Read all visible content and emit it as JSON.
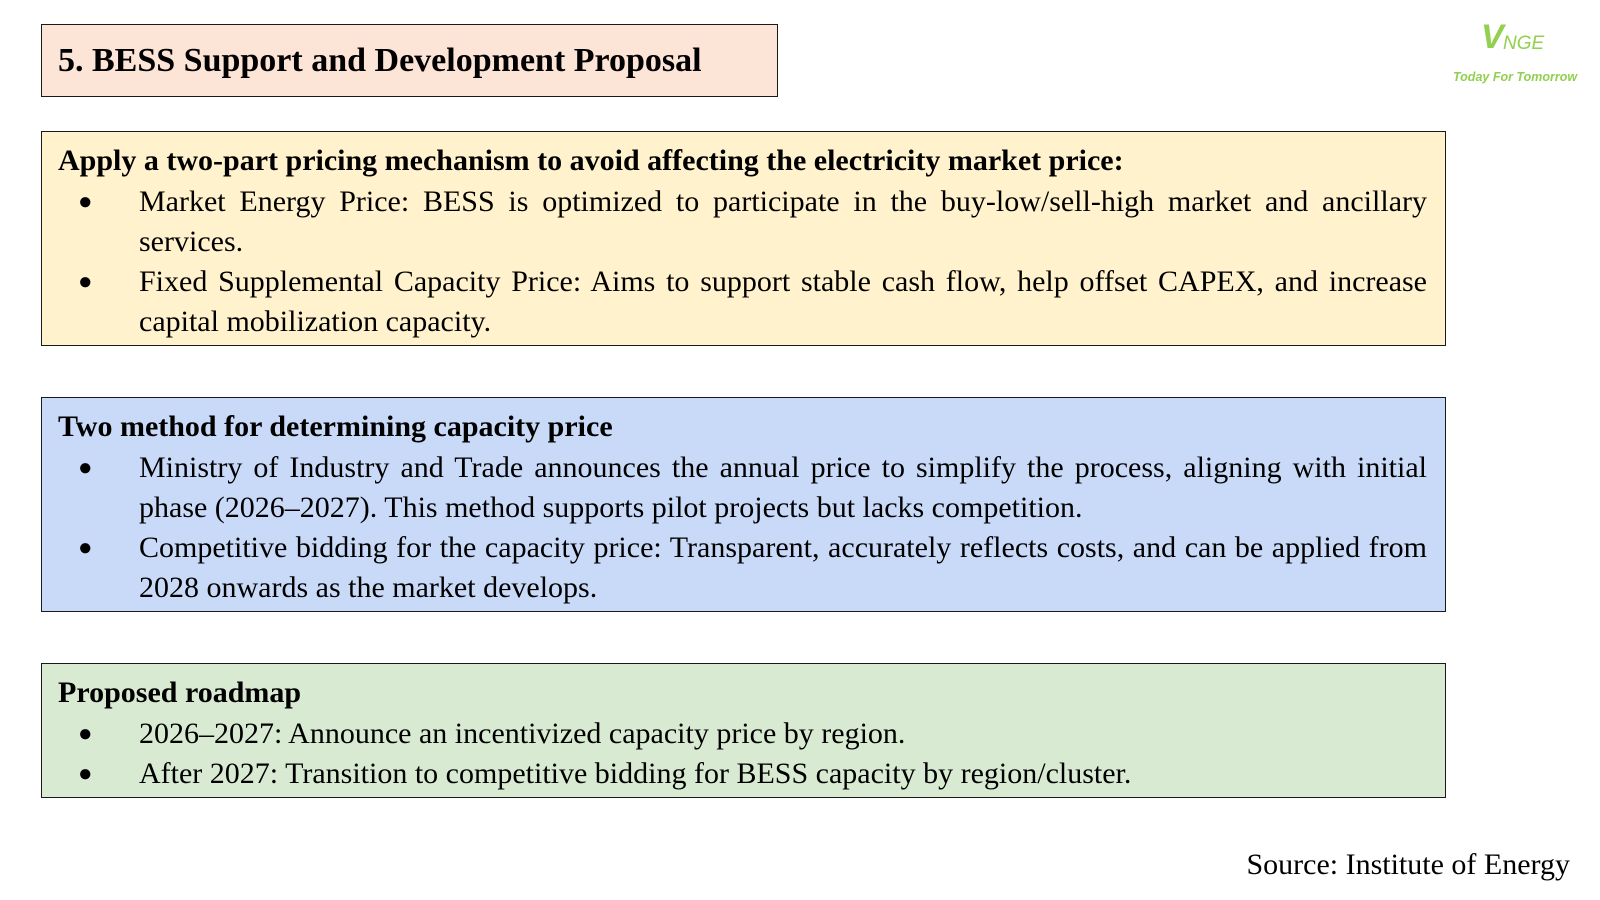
{
  "header": {
    "title": "5. BESS Support and Development Proposal",
    "title_bg": "#fce4d6"
  },
  "logo": {
    "mark_v": "V",
    "mark_rest": "NGE",
    "tagline": "Today For Tomorrow",
    "color": "#92d050"
  },
  "panels": [
    {
      "heading": "Apply a two-part pricing mechanism to avoid affecting the electricity market price:",
      "bg": "#fff2cc",
      "bullets": [
        "Market Energy Price: BESS is optimized to participate in the buy-low/sell-high market and ancillary services.",
        "Fixed Supplemental Capacity Price: Aims to support stable cash flow, help offset CAPEX, and increase capital mobilization capacity."
      ]
    },
    {
      "heading": "Two method for determining capacity price",
      "bg": "#c9daf8",
      "bullets": [
        "Ministry of Industry and Trade announces the annual price to simplify the process, aligning with initial phase (2026–2027). This method supports pilot projects but lacks competition.",
        "Competitive bidding for the capacity price: Transparent, accurately reflects costs, and can be applied from 2028 onwards as the market develops."
      ]
    },
    {
      "heading": "Proposed roadmap",
      "bg": "#d9ead3",
      "bullets": [
        "2026–2027: Announce an incentivized capacity price by region.",
        "After 2027: Transition to competitive bidding for BESS capacity by region/cluster."
      ]
    }
  ],
  "bullet_glyph": "●",
  "footer": {
    "source": "Source: Institute of Energy"
  }
}
